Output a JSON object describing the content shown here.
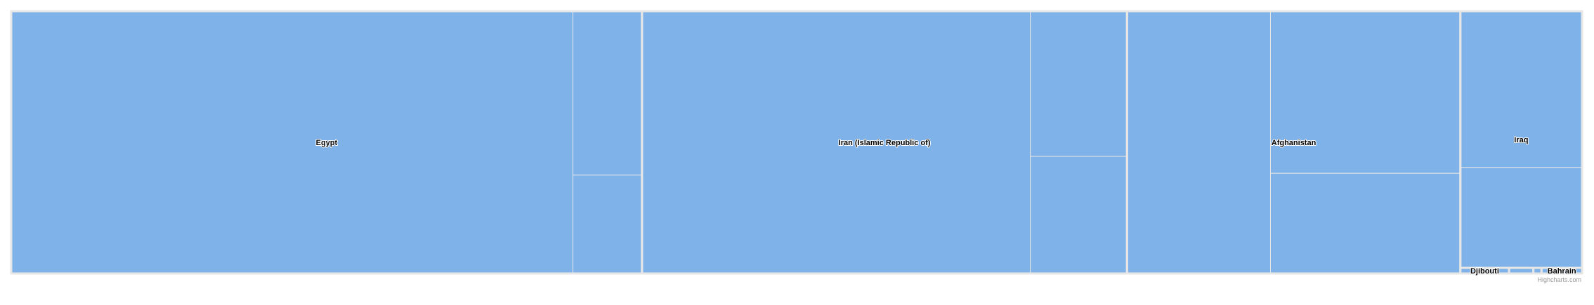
{
  "chart_data": {
    "type": "treemap",
    "title": "",
    "colors": {
      "fill": "#7eb2e9",
      "border": "#e6e6e6",
      "group_border": "#e6e6e6",
      "label_fill": "#000000",
      "label_halo": "#ffffff"
    },
    "groups": [
      {
        "name": "Egypt",
        "value": 0.3654,
        "tiles": [
          0.3254,
          0.025,
          0.015
        ]
      },
      {
        "name": "Iran (Islamic Republic of)",
        "value": 0.281,
        "tiles": [
          0.225,
          0.031,
          0.025
        ]
      },
      {
        "name": "Afghanistan",
        "value": 0.1931,
        "tiles": [
          0.0831,
          0.068,
          0.042
        ]
      },
      {
        "name": "Iraq",
        "value": 0.069,
        "tiles": [
          0.042,
          0.027
        ]
      },
      {
        "name": "Djibouti",
        "value": 0.0006,
        "tiles": [
          0.0006
        ]
      },
      {
        "name": "",
        "value": 0.0003,
        "tiles": [
          0.0003
        ]
      },
      {
        "name": "",
        "value": 0.0001,
        "tiles": [
          0.0001
        ]
      },
      {
        "name": "Bahrain",
        "value": 0.0005,
        "tiles": [
          0.0005
        ]
      }
    ]
  },
  "credits": "Highcharts.com"
}
